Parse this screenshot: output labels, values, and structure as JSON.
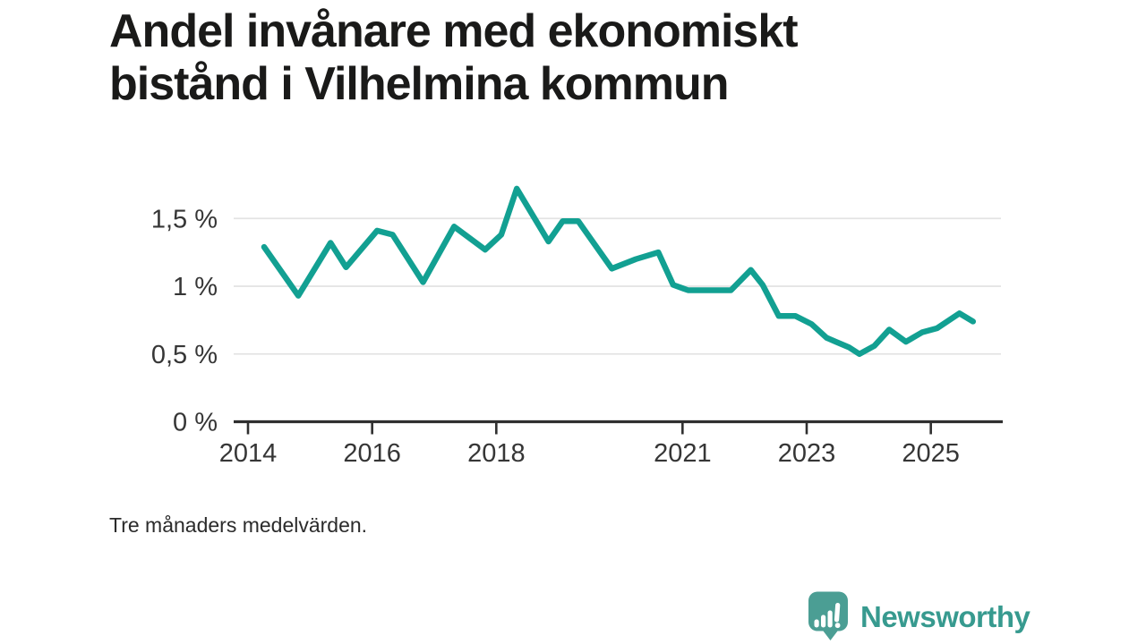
{
  "title": {
    "line1": "Andel invånare med ekonomiskt",
    "line2": "bistånd i Vilhelmina kommun"
  },
  "footnote": "Tre månaders medelvärden.",
  "brand": {
    "name": "Newsworthy",
    "icon": "newsworthy-speech-bubble-bar-chart-icon"
  },
  "colors": {
    "line": "#12a092",
    "grid": "#e3e3e3",
    "axis": "#2f2f2f",
    "title_text": "#1a1a19",
    "tick_text": "#363636",
    "footnote_text": "#2b2b2b",
    "background": "#ffffff",
    "brand_icon": "#4b9e94",
    "brand_text": "#379a8f"
  },
  "chart_data": {
    "type": "line",
    "title": "Andel invånare med ekonomiskt bistånd i Vilhelmina kommun",
    "subtitle": "Tre månaders medelvärden.",
    "unit": "%",
    "xlabel": "",
    "ylabel": "",
    "xlim": [
      2013.77,
      2026.16
    ],
    "ylim": [
      0,
      1.85
    ],
    "grid": true,
    "legend": "none",
    "x_ticks": [
      2014,
      2016,
      2018,
      2021,
      2023,
      2025
    ],
    "y_ticks": [
      {
        "value": 0,
        "label": "0 %"
      },
      {
        "value": 0.5,
        "label": "0,5 %"
      },
      {
        "value": 1,
        "label": "1 %"
      },
      {
        "value": 1.5,
        "label": "1,5 %"
      }
    ],
    "series": [
      {
        "name": "Andel invånare med ekonomiskt bistånd",
        "points": [
          [
            2014.26,
            1.29
          ],
          [
            2014.81,
            0.93
          ],
          [
            2015.33,
            1.32
          ],
          [
            2015.58,
            1.14
          ],
          [
            2016.08,
            1.41
          ],
          [
            2016.33,
            1.38
          ],
          [
            2016.82,
            1.03
          ],
          [
            2017.32,
            1.44
          ],
          [
            2017.82,
            1.27
          ],
          [
            2018.08,
            1.38
          ],
          [
            2018.33,
            1.72
          ],
          [
            2018.84,
            1.33
          ],
          [
            2019.07,
            1.48
          ],
          [
            2019.32,
            1.48
          ],
          [
            2019.86,
            1.13
          ],
          [
            2020.25,
            1.2
          ],
          [
            2020.61,
            1.25
          ],
          [
            2020.85,
            1.01
          ],
          [
            2021.09,
            0.97
          ],
          [
            2021.78,
            0.97
          ],
          [
            2022.1,
            1.12
          ],
          [
            2022.29,
            1.01
          ],
          [
            2022.55,
            0.78
          ],
          [
            2022.82,
            0.78
          ],
          [
            2023.08,
            0.72
          ],
          [
            2023.32,
            0.62
          ],
          [
            2023.47,
            0.59
          ],
          [
            2023.68,
            0.55
          ],
          [
            2023.85,
            0.5
          ],
          [
            2024.09,
            0.56
          ],
          [
            2024.33,
            0.68
          ],
          [
            2024.6,
            0.59
          ],
          [
            2024.86,
            0.66
          ],
          [
            2025.1,
            0.69
          ],
          [
            2025.46,
            0.8
          ],
          [
            2025.68,
            0.74
          ]
        ]
      }
    ]
  }
}
